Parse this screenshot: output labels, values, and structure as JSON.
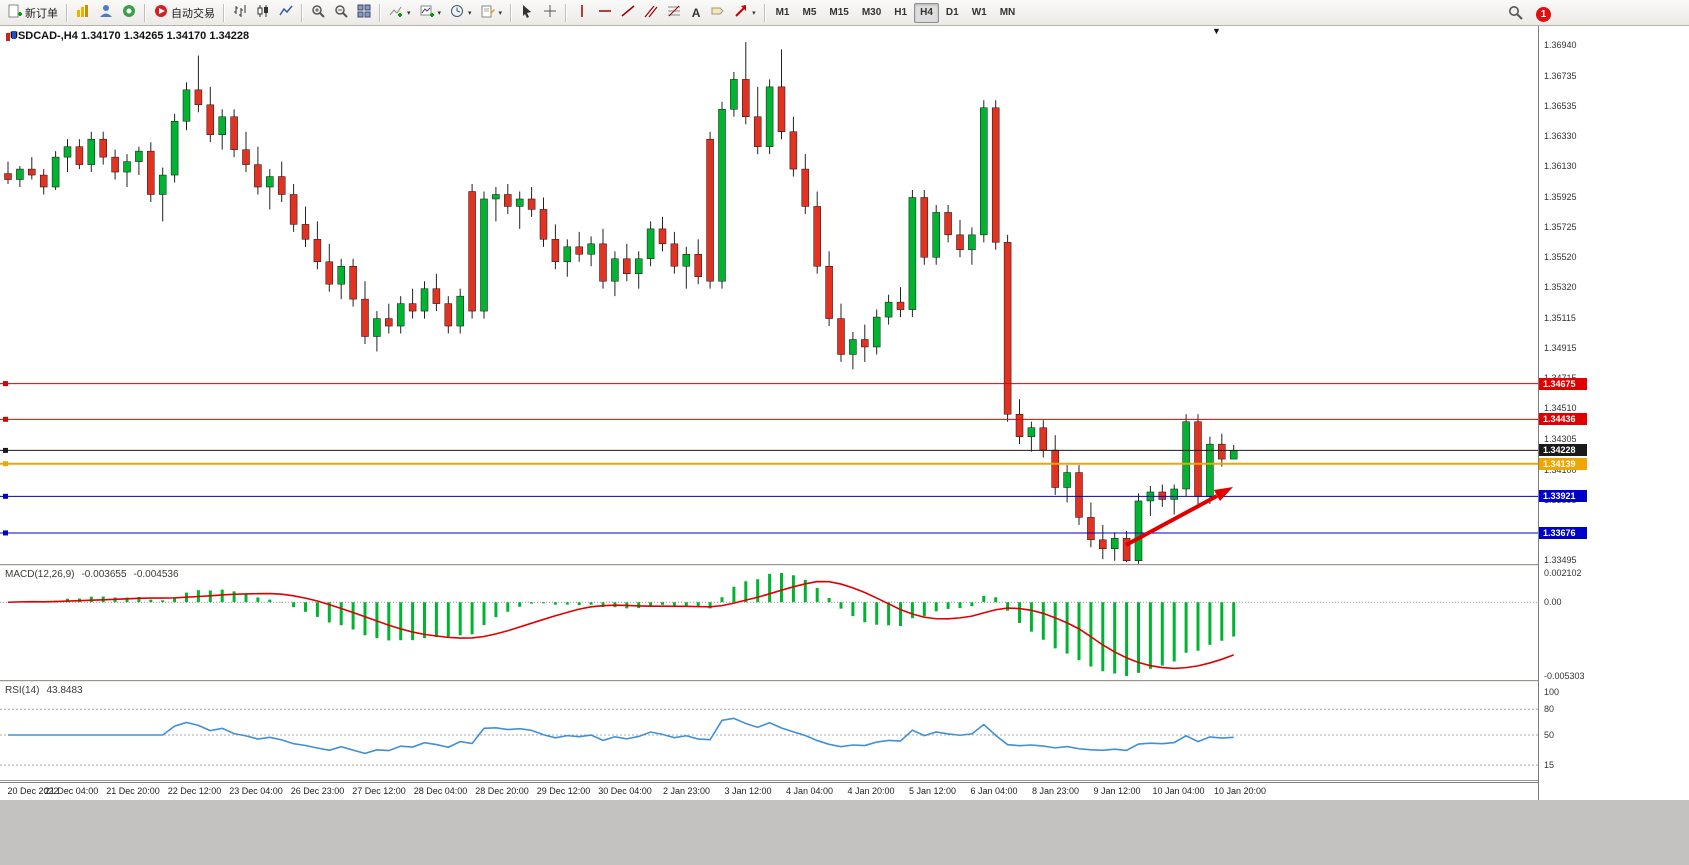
{
  "toolbar": {
    "new_order_label": "新订单",
    "auto_trading_label": "自动交易",
    "text_tool_label": "A",
    "timeframes": [
      "M1",
      "M5",
      "M15",
      "M30",
      "H1",
      "H4",
      "D1",
      "W1",
      "MN"
    ],
    "active_timeframe": "H4",
    "notification_badge": "1"
  },
  "chart": {
    "title": "USDCAD-,H4 1.34170 1.34265 1.34170 1.34228",
    "price_axis_labels": [
      "1.36940",
      "1.36735",
      "1.36535",
      "1.36330",
      "1.36130",
      "1.35925",
      "1.35725",
      "1.35520",
      "1.35320",
      "1.35115",
      "1.34915",
      "1.34715",
      "1.34510",
      "1.34305",
      "1.34100",
      "1.33895",
      "1.33690",
      "1.33495"
    ],
    "colors": {
      "up": "#00B432",
      "down": "#E23222",
      "wick": "#222222",
      "macd_hist": "#00B432",
      "macd_signal": "#E00000",
      "rsi_line": "#4090D8",
      "arrow": "#E00000"
    }
  },
  "chart_data": {
    "type": "candlestick",
    "symbol": "USDCAD-",
    "timeframe": "H4",
    "open": "1.34170",
    "high": "1.34265",
    "low": "1.34170",
    "close": "1.34228",
    "candles": [
      [
        1.3608,
        1.3616,
        1.3601,
        1.3604
      ],
      [
        1.3604,
        1.3613,
        1.3599,
        1.3611
      ],
      [
        1.3611,
        1.3619,
        1.3604,
        1.3607
      ],
      [
        1.3607,
        1.3611,
        1.3594,
        1.3599
      ],
      [
        1.3599,
        1.3623,
        1.3597,
        1.3619
      ],
      [
        1.3619,
        1.3631,
        1.3609,
        1.3626
      ],
      [
        1.3626,
        1.3631,
        1.3611,
        1.3614
      ],
      [
        1.3614,
        1.3636,
        1.3609,
        1.3631
      ],
      [
        1.3631,
        1.3636,
        1.3614,
        1.3619
      ],
      [
        1.3619,
        1.3624,
        1.3604,
        1.3609
      ],
      [
        1.3609,
        1.3621,
        1.3599,
        1.3616
      ],
      [
        1.3616,
        1.3626,
        1.3607,
        1.3623
      ],
      [
        1.3623,
        1.3629,
        1.3589,
        1.3594
      ],
      [
        1.3594,
        1.3612,
        1.3576,
        1.3607
      ],
      [
        1.3607,
        1.3648,
        1.3602,
        1.3643
      ],
      [
        1.3643,
        1.3669,
        1.3637,
        1.3664
      ],
      [
        1.3664,
        1.3687,
        1.3649,
        1.3654
      ],
      [
        1.3654,
        1.3666,
        1.3629,
        1.3634
      ],
      [
        1.3634,
        1.3651,
        1.3624,
        1.3646
      ],
      [
        1.3646,
        1.3651,
        1.3619,
        1.3624
      ],
      [
        1.3624,
        1.3636,
        1.3609,
        1.3614
      ],
      [
        1.3614,
        1.3626,
        1.3594,
        1.3599
      ],
      [
        1.3599,
        1.3611,
        1.3584,
        1.3606
      ],
      [
        1.3606,
        1.3616,
        1.3589,
        1.3594
      ],
      [
        1.3594,
        1.3601,
        1.3569,
        1.3574
      ],
      [
        1.3574,
        1.3586,
        1.3559,
        1.3564
      ],
      [
        1.3564,
        1.3576,
        1.3544,
        1.3549
      ],
      [
        1.3549,
        1.3561,
        1.3529,
        1.3534
      ],
      [
        1.3534,
        1.3551,
        1.3524,
        1.3546
      ],
      [
        1.3546,
        1.3551,
        1.3519,
        1.3524
      ],
      [
        1.3524,
        1.3536,
        1.3494,
        1.3499
      ],
      [
        1.3499,
        1.3516,
        1.3489,
        1.3511
      ],
      [
        1.3511,
        1.3521,
        1.3501,
        1.3506
      ],
      [
        1.3506,
        1.3526,
        1.3501,
        1.3521
      ],
      [
        1.3521,
        1.3531,
        1.3511,
        1.3516
      ],
      [
        1.3516,
        1.3536,
        1.3511,
        1.3531
      ],
      [
        1.3531,
        1.3541,
        1.3516,
        1.3521
      ],
      [
        1.3521,
        1.3526,
        1.3501,
        1.3506
      ],
      [
        1.3506,
        1.3531,
        1.3501,
        1.3526
      ],
      [
        1.3596,
        1.3601,
        1.3511,
        1.3516
      ],
      [
        1.3516,
        1.3596,
        1.3511,
        1.3591
      ],
      [
        1.3591,
        1.3599,
        1.3576,
        1.3594
      ],
      [
        1.3594,
        1.3601,
        1.3581,
        1.3586
      ],
      [
        1.3586,
        1.3596,
        1.3571,
        1.3591
      ],
      [
        1.3591,
        1.3599,
        1.3579,
        1.3584
      ],
      [
        1.3584,
        1.3592,
        1.3559,
        1.3564
      ],
      [
        1.3564,
        1.3574,
        1.3544,
        1.3549
      ],
      [
        1.3549,
        1.3564,
        1.3539,
        1.3559
      ],
      [
        1.3559,
        1.3569,
        1.3549,
        1.3554
      ],
      [
        1.3554,
        1.3566,
        1.3546,
        1.3561
      ],
      [
        1.3561,
        1.3571,
        1.3531,
        1.3536
      ],
      [
        1.3536,
        1.3556,
        1.3526,
        1.3551
      ],
      [
        1.3551,
        1.3561,
        1.3536,
        1.3541
      ],
      [
        1.3541,
        1.3556,
        1.3531,
        1.3551
      ],
      [
        1.3551,
        1.3576,
        1.3546,
        1.3571
      ],
      [
        1.3571,
        1.3579,
        1.3556,
        1.3561
      ],
      [
        1.3561,
        1.3569,
        1.3541,
        1.3546
      ],
      [
        1.3546,
        1.3559,
        1.3531,
        1.3554
      ],
      [
        1.3554,
        1.3564,
        1.3534,
        1.3539
      ],
      [
        1.3631,
        1.3636,
        1.3531,
        1.3536
      ],
      [
        1.3536,
        1.3656,
        1.3531,
        1.3651
      ],
      [
        1.3651,
        1.3676,
        1.3646,
        1.3671
      ],
      [
        1.3671,
        1.3696,
        1.3641,
        1.3646
      ],
      [
        1.3646,
        1.3666,
        1.3621,
        1.3626
      ],
      [
        1.3626,
        1.3671,
        1.3621,
        1.3666
      ],
      [
        1.3666,
        1.3691,
        1.3631,
        1.3636
      ],
      [
        1.3636,
        1.3646,
        1.3606,
        1.3611
      ],
      [
        1.3611,
        1.3621,
        1.3581,
        1.3586
      ],
      [
        1.3586,
        1.3596,
        1.3541,
        1.3546
      ],
      [
        1.3546,
        1.3556,
        1.3506,
        1.3511
      ],
      [
        1.3511,
        1.3521,
        1.3482,
        1.3487
      ],
      [
        1.3487,
        1.3502,
        1.3477,
        1.3497
      ],
      [
        1.3497,
        1.3507,
        1.3482,
        1.3492
      ],
      [
        1.3492,
        1.3517,
        1.3487,
        1.3512
      ],
      [
        1.3512,
        1.3527,
        1.3507,
        1.3522
      ],
      [
        1.3522,
        1.3532,
        1.3512,
        1.3517
      ],
      [
        1.3517,
        1.3597,
        1.3512,
        1.3592
      ],
      [
        1.3592,
        1.3597,
        1.3547,
        1.3552
      ],
      [
        1.3552,
        1.3587,
        1.3547,
        1.3582
      ],
      [
        1.3582,
        1.3587,
        1.3562,
        1.3567
      ],
      [
        1.3567,
        1.3577,
        1.3552,
        1.3557
      ],
      [
        1.3557,
        1.3572,
        1.3547,
        1.3567
      ],
      [
        1.3567,
        1.3657,
        1.3562,
        1.3652
      ],
      [
        1.3652,
        1.3657,
        1.3557,
        1.3562
      ],
      [
        1.3562,
        1.3567,
        1.3442,
        1.3447
      ],
      [
        1.3447,
        1.3457,
        1.3427,
        1.3432
      ],
      [
        1.3432,
        1.3442,
        1.3422,
        1.3438
      ],
      [
        1.3438,
        1.3443,
        1.3418,
        1.3423
      ],
      [
        1.3423,
        1.3433,
        1.3393,
        1.3398
      ],
      [
        1.3398,
        1.3413,
        1.3388,
        1.3408
      ],
      [
        1.3408,
        1.3413,
        1.3373,
        1.3378
      ],
      [
        1.3378,
        1.3388,
        1.3358,
        1.3363
      ],
      [
        1.3363,
        1.3373,
        1.335,
        1.3357
      ],
      [
        1.3357,
        1.3368,
        1.3349,
        1.3364
      ],
      [
        1.3364,
        1.3369,
        1.3348,
        1.3349
      ],
      [
        1.3349,
        1.3394,
        1.3347,
        1.3389
      ],
      [
        1.3389,
        1.3399,
        1.3379,
        1.3395
      ],
      [
        1.3395,
        1.34,
        1.3385,
        1.339
      ],
      [
        1.339,
        1.34,
        1.338,
        1.3397
      ],
      [
        1.3397,
        1.3447,
        1.3392,
        1.3442
      ],
      [
        1.3442,
        1.3447,
        1.3387,
        1.3392
      ],
      [
        1.3392,
        1.3432,
        1.3387,
        1.3427
      ],
      [
        1.3427,
        1.3434,
        1.3412,
        1.3417
      ],
      [
        1.3417,
        1.34265,
        1.3417,
        1.34228
      ]
    ],
    "time_labels": [
      "20 Dec 2022",
      "21 Dec 04:00",
      "21 Dec 20:00",
      "22 Dec 12:00",
      "23 Dec 04:00",
      "26 Dec 23:00",
      "27 Dec 12:00",
      "28 Dec 04:00",
      "28 Dec 20:00",
      "29 Dec 12:00",
      "30 Dec 04:00",
      "2 Jan 23:00",
      "3 Jan 12:00",
      "4 Jan 04:00",
      "4 Jan 20:00",
      "5 Jan 12:00",
      "6 Jan 04:00",
      "8 Jan 23:00",
      "9 Jan 12:00",
      "10 Jan 04:00",
      "10 Jan 20:00"
    ],
    "price_levels": [
      {
        "price": "1.34675",
        "color": "#E00000",
        "width": 1
      },
      {
        "price": "1.34436",
        "color": "#E00000",
        "width": 1
      },
      {
        "price": "1.34228",
        "color": "#1a1a1a",
        "width": 1,
        "is_current": true
      },
      {
        "price": "1.34139",
        "color": "#F0A500",
        "width": 2
      },
      {
        "price": "1.33921",
        "color": "#0000C8",
        "width": 1
      },
      {
        "price": "1.33676",
        "color": "#0000C8",
        "width": 1
      }
    ],
    "macd": {
      "label": "MACD(12,26,9)",
      "value_main": "-0.003655",
      "value_signal": "-0.004536",
      "axis": [
        "0.002102",
        "0.00",
        "-0.005303"
      ],
      "params": [
        12,
        26,
        9
      ]
    },
    "rsi": {
      "label": "RSI(14)",
      "value": "43.8483",
      "axis": [
        "100",
        "80",
        "50",
        "15"
      ],
      "levels": [
        80,
        50,
        15
      ],
      "period": 14
    }
  }
}
